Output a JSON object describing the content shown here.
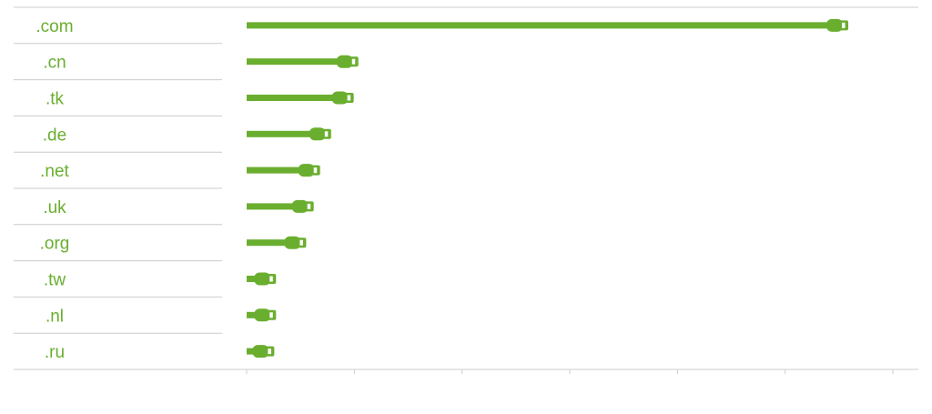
{
  "chart_data": {
    "type": "bar",
    "orientation": "horizontal",
    "categories": [
      ".com",
      ".cn",
      ".tk",
      ".de",
      ".net",
      ".uk",
      ".org",
      ".tw",
      ".nl",
      ".ru"
    ],
    "values": [
      100,
      15.5,
      14.7,
      10.8,
      8.9,
      7.8,
      6.5,
      1.3,
      1.3,
      1.0
    ],
    "title": "",
    "xlabel": "",
    "ylabel": "",
    "xlim": [
      0,
      110
    ],
    "x_tick_count": 7,
    "bar_style": "usb-cable",
    "grid": false,
    "legend": "none"
  },
  "colors": {
    "accent": "#6aae2f",
    "label": "#6aae2f",
    "divider": "#cccccc",
    "plug_slot": "#ffffff"
  }
}
